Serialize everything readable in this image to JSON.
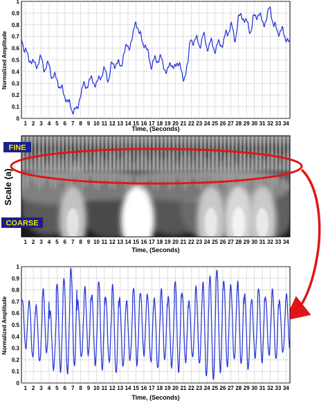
{
  "chart_data": [
    {
      "type": "line",
      "id": "top",
      "xlabel": "Time, (Seconds)",
      "ylabel": "Normalized Amplitude",
      "xticks": [
        1,
        2,
        3,
        4,
        5,
        6,
        7,
        8,
        9,
        10,
        11,
        12,
        13,
        14,
        15,
        16,
        17,
        18,
        19,
        20,
        21,
        22,
        23,
        24,
        25,
        26,
        27,
        28,
        29,
        30,
        31,
        32,
        33,
        34
      ],
      "yticks": [
        0,
        0.1,
        0.2,
        0.3,
        0.4,
        0.5,
        0.6,
        0.7,
        0.8,
        0.9,
        1
      ],
      "ytick_labels": [
        "0",
        "0.1",
        "0.2",
        "0.3",
        "0.4",
        "0.5",
        "0.6",
        "0.7",
        "0.8",
        "0.9",
        "1"
      ],
      "xlim": [
        0.5,
        34.5
      ],
      "ylim": [
        0,
        1
      ],
      "grid": true,
      "series_color": "#2b3bd6",
      "series": [
        {
          "x": [
            0.5,
            1.0,
            1.5,
            2.0,
            2.5,
            3.0,
            3.5,
            4.0,
            4.5,
            5.0,
            5.5,
            6.0,
            6.5,
            7.0,
            7.5,
            8.0,
            8.5,
            9.0,
            9.5,
            10.0,
            10.5,
            11.0,
            11.5,
            12.0,
            12.5,
            13.0,
            13.5,
            14.0,
            14.5,
            15.0,
            15.5,
            16.0,
            16.5,
            17.0,
            17.5,
            18.0,
            18.5,
            19.0,
            19.5,
            20.0,
            20.5,
            21.0,
            21.5,
            22.0,
            22.5,
            23.0,
            23.5,
            24.0,
            24.5,
            25.0,
            25.5,
            26.0,
            26.5,
            27.0,
            27.5,
            28.0,
            28.5,
            29.0,
            29.5,
            30.0,
            30.5,
            31.0,
            31.5,
            32.0,
            32.5,
            33.0,
            33.5,
            34.0,
            34.5
          ],
          "y": [
            0.7,
            0.56,
            0.52,
            0.46,
            0.47,
            0.5,
            0.43,
            0.45,
            0.35,
            0.34,
            0.25,
            0.2,
            0.12,
            0.08,
            0.06,
            0.22,
            0.28,
            0.3,
            0.34,
            0.28,
            0.37,
            0.4,
            0.35,
            0.45,
            0.48,
            0.44,
            0.56,
            0.62,
            0.66,
            0.84,
            0.7,
            0.65,
            0.55,
            0.46,
            0.5,
            0.52,
            0.45,
            0.4,
            0.48,
            0.42,
            0.5,
            0.3,
            0.48,
            0.66,
            0.68,
            0.63,
            0.7,
            0.62,
            0.64,
            0.6,
            0.63,
            0.65,
            0.72,
            0.8,
            0.68,
            0.85,
            0.88,
            0.81,
            0.76,
            0.86,
            0.9,
            0.82,
            0.84,
            0.95,
            0.78,
            0.75,
            0.74,
            0.7,
            0.62
          ]
        }
      ]
    },
    {
      "type": "heatmap",
      "id": "scalogram",
      "xlabel": "Time, (Seconds)",
      "ylabel": "Scale (a)",
      "xticks": [
        1,
        2,
        3,
        4,
        5,
        6,
        7,
        8,
        9,
        10,
        11,
        12,
        13,
        14,
        15,
        16,
        17,
        18,
        19,
        20,
        21,
        22,
        23,
        24,
        25,
        26,
        27,
        28,
        29,
        30,
        31,
        32,
        33,
        34
      ],
      "xlim": [
        0.5,
        34.5
      ],
      "fine_label": "FINE",
      "coarse_label": "COARSE",
      "colormap": "gray",
      "fine_band_period": 0.5,
      "bright_regions": [
        {
          "x": 15.2,
          "scale": "coarse",
          "intensity": 1.0
        },
        {
          "x": 7.0,
          "scale": "coarse",
          "intensity": 0.55
        },
        {
          "x": 28.0,
          "scale": "coarse",
          "intensity": 0.7
        },
        {
          "x": 31.0,
          "scale": "coarse",
          "intensity": 0.6
        },
        {
          "x": 24.5,
          "scale": "coarse",
          "intensity": 0.6
        }
      ]
    },
    {
      "type": "line",
      "id": "bottom",
      "xlabel": "Time, (Seconds)",
      "ylabel": "Normalized Amplitude",
      "xticks": [
        1,
        2,
        3,
        4,
        5,
        6,
        7,
        8,
        9,
        10,
        11,
        12,
        13,
        14,
        15,
        16,
        17,
        18,
        19,
        20,
        21,
        22,
        23,
        24,
        25,
        26,
        27,
        28,
        29,
        30,
        31,
        32,
        33,
        34
      ],
      "yticks": [
        0,
        0.1,
        0.2,
        0.3,
        0.4,
        0.5,
        0.6,
        0.7,
        0.8,
        0.9,
        1
      ],
      "ytick_labels": [
        "0",
        "0.1",
        "0.2",
        "0.3",
        "0.4",
        "0.5",
        "0.6",
        "0.7",
        "0.8",
        "0.9",
        "1"
      ],
      "xlim": [
        0.5,
        34.5
      ],
      "ylim": [
        0,
        1
      ],
      "grid": true,
      "series_color": "#2b3bd6",
      "oscillation_period_seconds": 0.88,
      "series": [
        {
          "peaks": [
            0.72,
            0.7,
            0.66,
            0.8,
            0.62,
            0.86,
            0.9,
            0.98,
            0.7,
            0.82,
            0.76,
            0.88,
            0.74,
            0.84,
            0.72,
            0.7,
            0.82,
            0.78,
            0.76,
            0.72,
            0.8,
            0.74,
            0.88,
            0.78,
            0.7,
            0.82,
            0.86,
            0.92,
            0.98,
            0.88,
            0.84,
            0.86,
            0.76,
            0.72,
            0.82,
            0.74,
            0.8,
            0.7,
            0.76
          ],
          "troughs": [
            0.3,
            0.22,
            0.18,
            0.26,
            0.12,
            0.1,
            0.08,
            0.14,
            0.22,
            0.24,
            0.16,
            0.12,
            0.18,
            0.08,
            0.14,
            0.2,
            0.16,
            0.24,
            0.18,
            0.12,
            0.2,
            0.14,
            0.1,
            0.18,
            0.22,
            0.16,
            0.06,
            0.04,
            0.1,
            0.14,
            0.2,
            0.16,
            0.12,
            0.22,
            0.18,
            0.24,
            0.2,
            0.26,
            0.3
          ]
        }
      ]
    }
  ]
}
